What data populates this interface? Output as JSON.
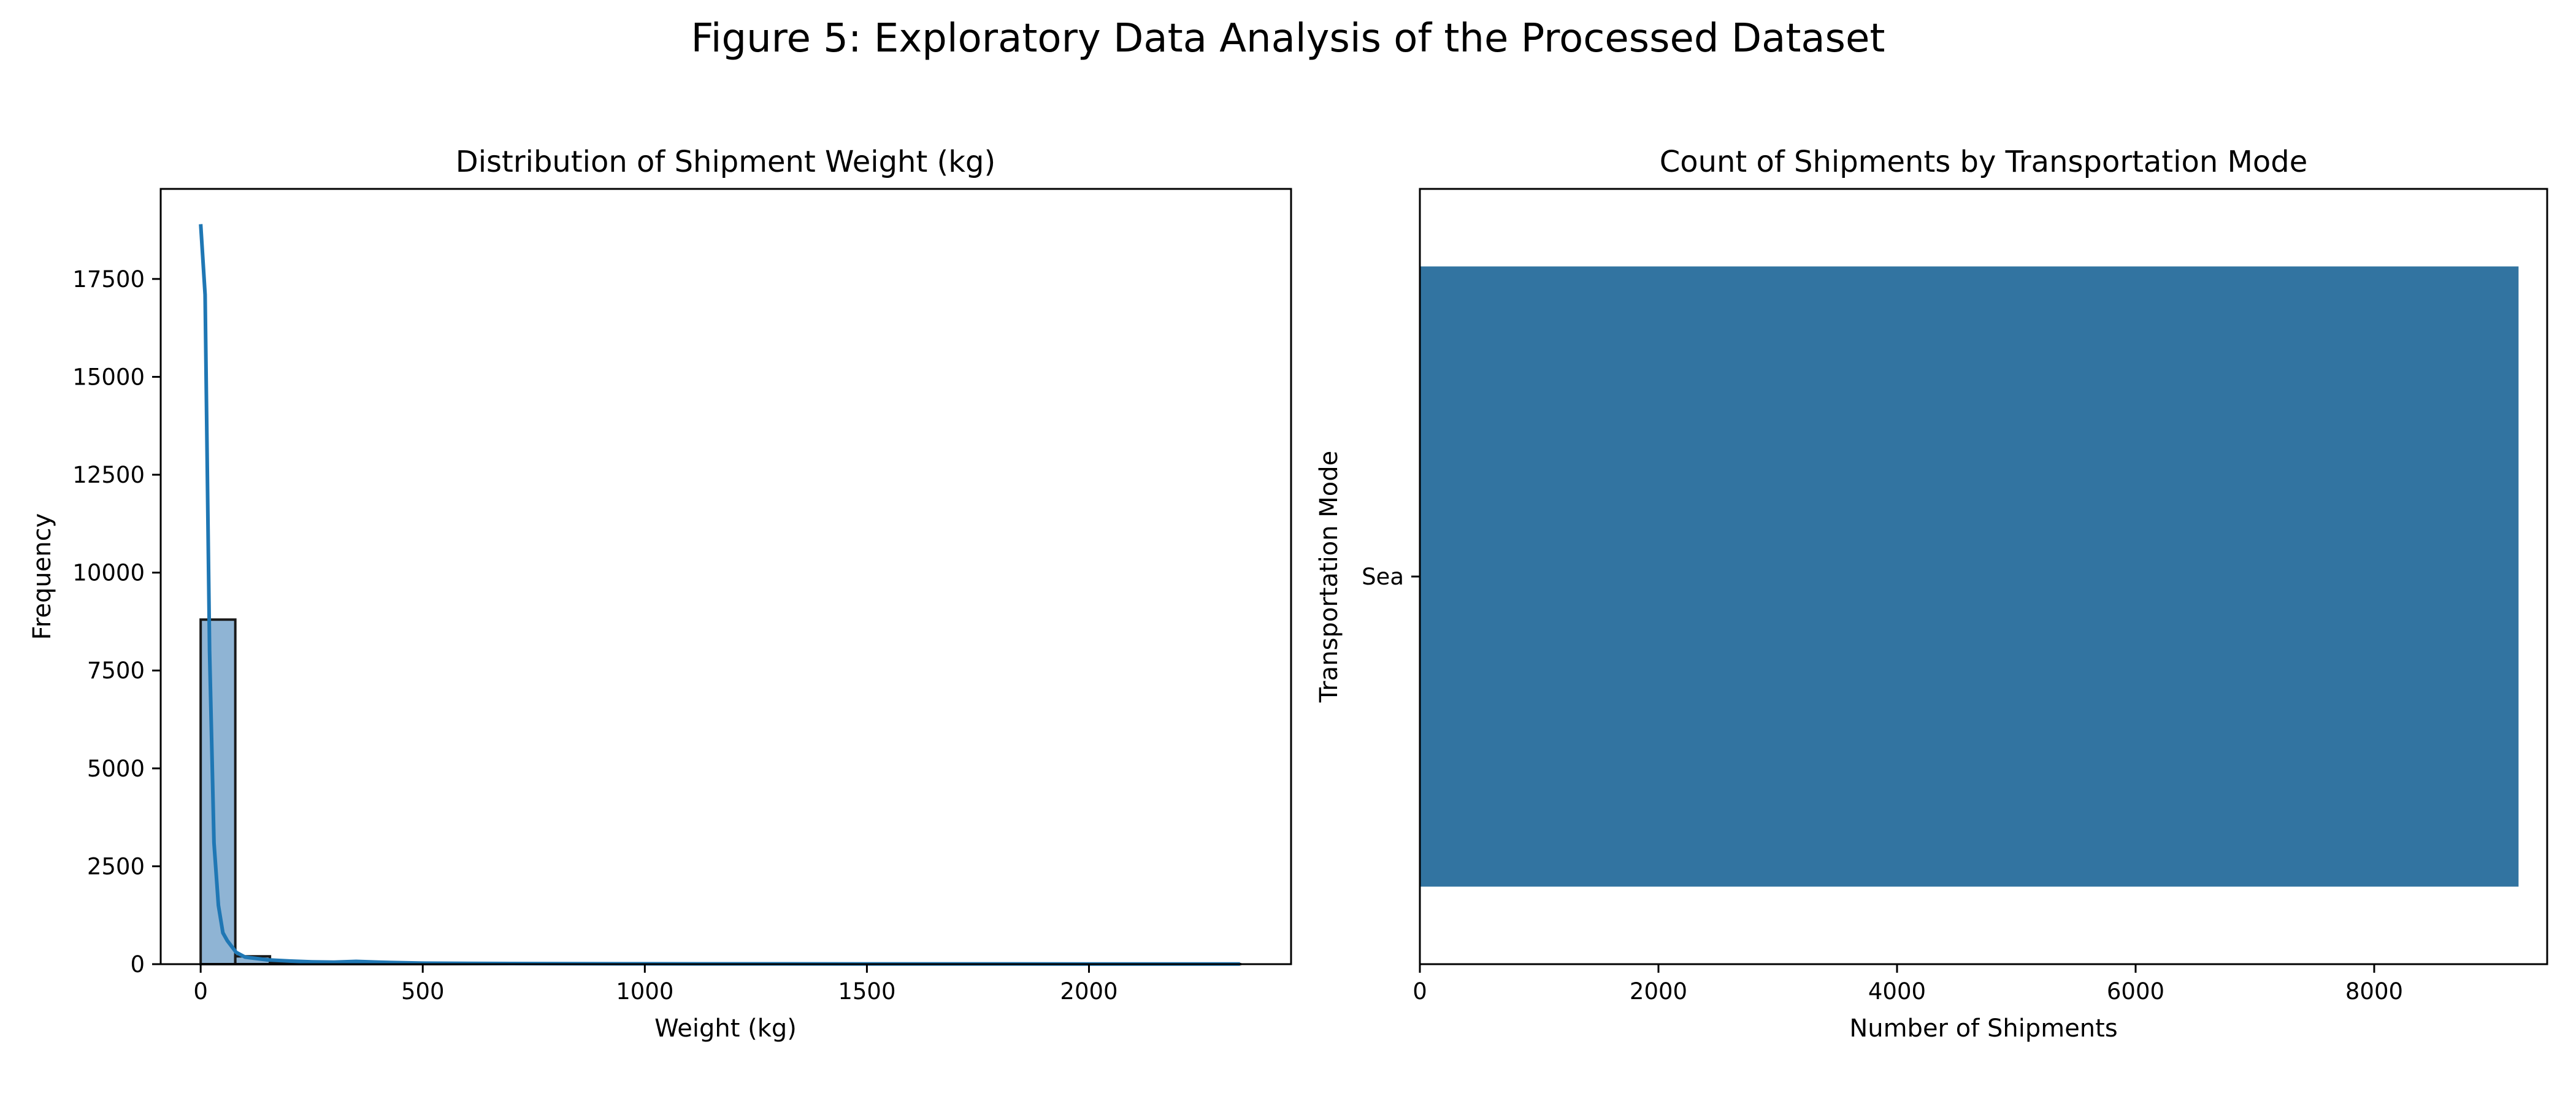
{
  "figure": {
    "title": "Figure 5: Exploratory Data Analysis of the Processed Dataset"
  },
  "colors": {
    "hist_fill": "#8fb4d4",
    "kde_line": "#1f77b4",
    "bar_fill": "#3274a1"
  },
  "chart_data": [
    {
      "type": "bar",
      "subtype": "histogram",
      "title": "Distribution of Shipment Weight (kg)",
      "xlabel": "Weight (kg)",
      "ylabel": "Frequency",
      "xlim": [
        -90,
        2455
      ],
      "ylim": [
        0,
        19800
      ],
      "xticks": [
        0,
        500,
        1000,
        1500,
        2000
      ],
      "yticks": [
        0,
        2500,
        5000,
        7500,
        10000,
        12500,
        15000,
        17500
      ],
      "bin_width": 78,
      "bins": [
        {
          "start": 0,
          "count": 8800
        },
        {
          "start": 78,
          "count": 200
        },
        {
          "start": 156,
          "count": 40
        },
        {
          "start": 234,
          "count": 25
        },
        {
          "start": 312,
          "count": 30
        },
        {
          "start": 390,
          "count": 12
        },
        {
          "start": 468,
          "count": 8
        },
        {
          "start": 546,
          "count": 5
        },
        {
          "start": 624,
          "count": 5
        },
        {
          "start": 702,
          "count": 4
        },
        {
          "start": 780,
          "count": 3
        },
        {
          "start": 858,
          "count": 3
        },
        {
          "start": 936,
          "count": 2
        },
        {
          "start": 1014,
          "count": 2
        },
        {
          "start": 1092,
          "count": 2
        },
        {
          "start": 1170,
          "count": 1
        },
        {
          "start": 1248,
          "count": 1
        },
        {
          "start": 1326,
          "count": 1
        },
        {
          "start": 1404,
          "count": 1
        },
        {
          "start": 1482,
          "count": 1
        },
        {
          "start": 1560,
          "count": 1
        },
        {
          "start": 1638,
          "count": 1
        },
        {
          "start": 1716,
          "count": 1
        },
        {
          "start": 1794,
          "count": 1
        },
        {
          "start": 1872,
          "count": 1
        },
        {
          "start": 1950,
          "count": 1
        },
        {
          "start": 2028,
          "count": 1
        },
        {
          "start": 2106,
          "count": 1
        },
        {
          "start": 2184,
          "count": 1
        },
        {
          "start": 2262,
          "count": 1
        }
      ],
      "kde": {
        "x": [
          0,
          10,
          20,
          30,
          40,
          50,
          60,
          70,
          80,
          100,
          150,
          200,
          250,
          300,
          350,
          400,
          500,
          700,
          1000,
          1500,
          2000,
          2340
        ],
        "y": [
          18900,
          17100,
          8000,
          3100,
          1500,
          800,
          600,
          450,
          300,
          180,
          110,
          80,
          60,
          50,
          70,
          50,
          25,
          15,
          10,
          6,
          5,
          4
        ]
      }
    },
    {
      "type": "bar",
      "orientation": "horizontal",
      "title": "Count of Shipments by Transportation Mode",
      "xlabel": "Number of Shipments",
      "ylabel": "Transportation Mode",
      "xlim": [
        0,
        9450
      ],
      "xticks": [
        0,
        2000,
        4000,
        6000,
        8000
      ],
      "categories": [
        "Sea"
      ],
      "values": [
        9210
      ]
    }
  ]
}
